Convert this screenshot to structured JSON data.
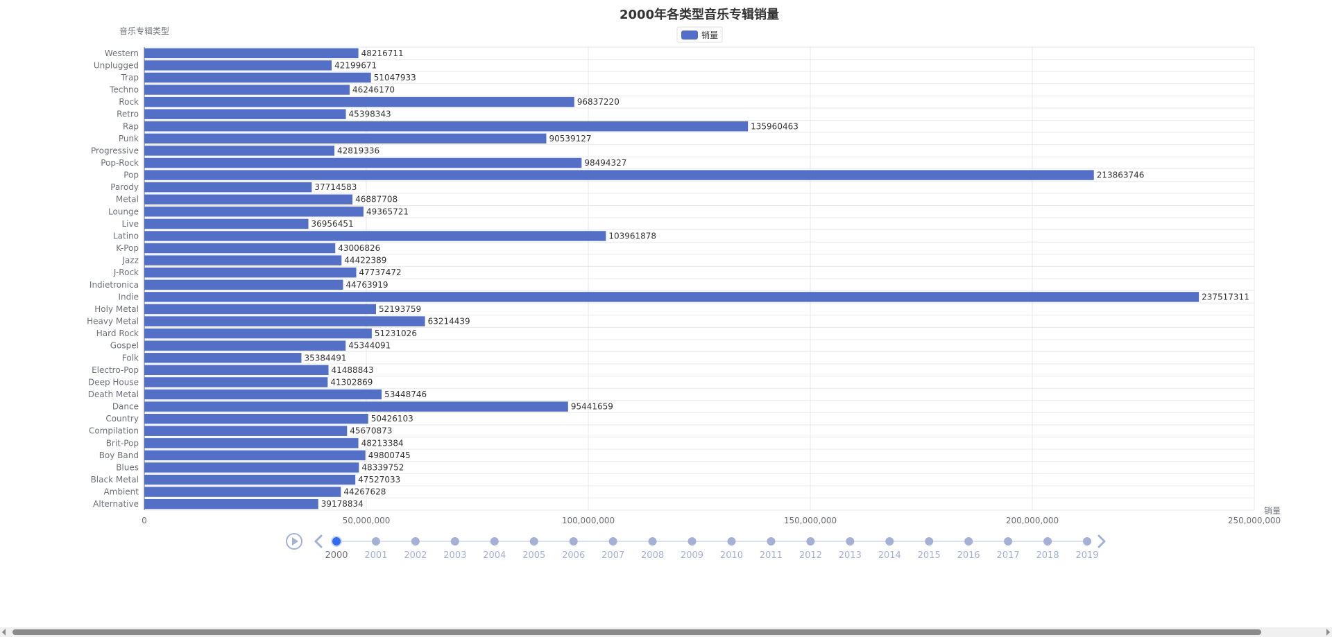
{
  "colors": {
    "bar": "#5470c6",
    "grid": "#e6e9f0",
    "timeline": "#a4b1d7",
    "timeline_active": "#316bf3"
  },
  "timeline": {
    "years": [
      "2000",
      "2001",
      "2002",
      "2003",
      "2004",
      "2005",
      "2006",
      "2007",
      "2008",
      "2009",
      "2010",
      "2011",
      "2012",
      "2013",
      "2014",
      "2015",
      "2016",
      "2017",
      "2018",
      "2019"
    ],
    "current": "2000"
  },
  "chart_data": {
    "type": "bar",
    "orientation": "horizontal",
    "title": "2000年各类型音乐专辑销量",
    "ylabel": "音乐专辑类型",
    "xlabel": "销量",
    "legend": [
      "销量"
    ],
    "legend_position": "top-center",
    "xlim": [
      0,
      250000000
    ],
    "x_ticks": [
      "0",
      "50,000,000",
      "100,000,000",
      "150,000,000",
      "200,000,000",
      "250,000,000"
    ],
    "x_tick_values": [
      0,
      50000000,
      100000000,
      150000000,
      200000000,
      250000000
    ],
    "grid": true,
    "categories": [
      "Western",
      "Unplugged",
      "Trap",
      "Techno",
      "Rock",
      "Retro",
      "Rap",
      "Punk",
      "Progressive",
      "Pop-Rock",
      "Pop",
      "Parody",
      "Metal",
      "Lounge",
      "Live",
      "Latino",
      "K-Pop",
      "Jazz",
      "J-Rock",
      "Indietronica",
      "Indie",
      "Holy Metal",
      "Heavy Metal",
      "Hard Rock",
      "Gospel",
      "Folk",
      "Electro-Pop",
      "Deep House",
      "Death Metal",
      "Dance",
      "Country",
      "Compilation",
      "Brit-Pop",
      "Boy Band",
      "Blues",
      "Black Metal",
      "Ambient",
      "Alternative"
    ],
    "series": [
      {
        "name": "销量",
        "values": [
          48216711,
          42199671,
          51047933,
          46246170,
          96837220,
          45398343,
          135960463,
          90539127,
          42819336,
          98494327,
          213863746,
          37714583,
          46887708,
          49365721,
          36956451,
          103961878,
          43006826,
          44422389,
          47737472,
          44763919,
          237517311,
          52193759,
          63214439,
          51231026,
          45344091,
          35384491,
          41488843,
          41302869,
          53448746,
          95441659,
          50426103,
          45670873,
          48213384,
          49800745,
          48339752,
          47527033,
          44267628,
          39178834
        ]
      }
    ]
  }
}
